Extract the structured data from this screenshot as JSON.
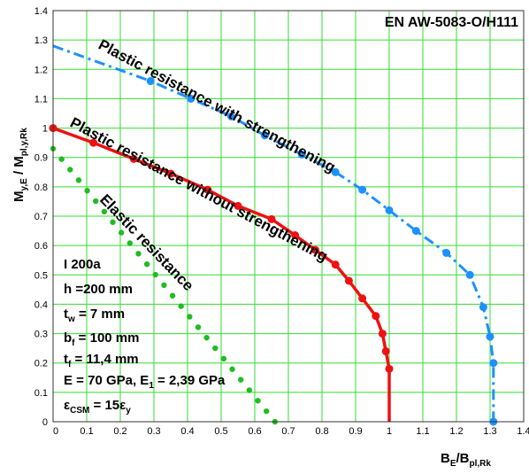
{
  "chart_data": {
    "type": "line",
    "material": "EN AW-5083-O/H111",
    "xlabel": {
      "main": "B",
      "sub1": "E",
      "mid": "/B",
      "sub2": "pl,Rk"
    },
    "ylabel": {
      "main": "M",
      "sub1": "y,E",
      "mid": " / M",
      "sub2": "pl,y,Rk"
    },
    "xlim": [
      0,
      1.4
    ],
    "ylim": [
      0,
      1.4
    ],
    "x_ticks": [
      "0",
      "0.1",
      "0.2",
      "0.3",
      "0.4",
      "0.5",
      "0.6",
      "0.7",
      "0.8",
      "0.9",
      "1",
      "1.1",
      "1.2",
      "1.3",
      "1.4"
    ],
    "y_ticks": [
      "0",
      "0.1",
      "0.2",
      "0.3",
      "0.4",
      "0.5",
      "0.6",
      "0.7",
      "0.8",
      "0.9",
      "1",
      "1.1",
      "1.2",
      "1.3",
      "1.4"
    ],
    "grid": true,
    "grid_color": "#33dd33",
    "series": [
      {
        "name": "Plastic resistance with strengthening",
        "color": "#1e90ff",
        "style": "dashdot",
        "x": [
          0,
          0.29,
          0.41,
          0.53,
          0.63,
          0.74,
          0.84,
          0.92,
          1.0,
          1.08,
          1.17,
          1.24,
          1.28,
          1.3,
          1.31,
          1.31
        ],
        "y": [
          1.28,
          1.16,
          1.1,
          1.04,
          0.975,
          0.91,
          0.85,
          0.79,
          0.72,
          0.65,
          0.575,
          0.5,
          0.39,
          0.29,
          0.2,
          0.0
        ]
      },
      {
        "name": "Plastic resistance without strengthening",
        "color": "#ee1111",
        "style": "solid",
        "x": [
          0,
          0.12,
          0.24,
          0.35,
          0.46,
          0.55,
          0.65,
          0.72,
          0.78,
          0.84,
          0.88,
          0.92,
          0.96,
          0.98,
          0.99,
          1.0,
          1.0
        ],
        "y": [
          1.0,
          0.95,
          0.895,
          0.845,
          0.79,
          0.735,
          0.69,
          0.635,
          0.585,
          0.535,
          0.48,
          0.42,
          0.36,
          0.3,
          0.24,
          0.18,
          0.0
        ]
      },
      {
        "name": "Elastic resistance",
        "color": "#22bb22",
        "style": "dotted",
        "x": [
          0,
          0.66
        ],
        "y": [
          0.93,
          0.0
        ]
      }
    ],
    "annotations": {
      "section": "I 200a",
      "h": "h =200 mm",
      "tw": {
        "main": "t",
        "sub": "w",
        "rest": " = 7 mm"
      },
      "bf": {
        "main": "b",
        "sub": "f",
        "rest": " = 100 mm"
      },
      "tf": {
        "main": "t",
        "sub": "f",
        "rest": " = 11,4 mm"
      },
      "E": {
        "a": "E = 70 GPa, E",
        "sub": "1",
        "b": " = 2,39 GPa"
      },
      "eps": {
        "main": "ε",
        "sub": "CSM",
        "mid": " = 15ε",
        "sub2": "y"
      }
    }
  }
}
